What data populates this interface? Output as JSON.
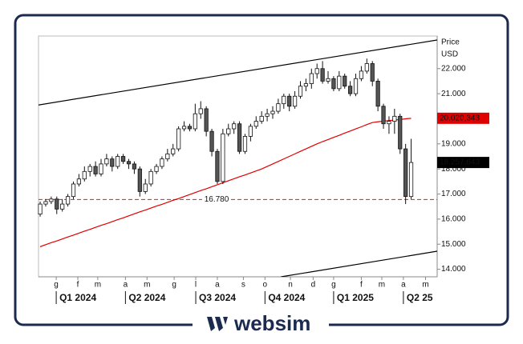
{
  "chart_data": {
    "type": "candlestick",
    "price_label": "Price",
    "currency_label": "USD",
    "brand": "websim",
    "xlim": [
      -0.3,
      71.7
    ],
    "xticks": [
      {
        "value": 2.9,
        "label": "g"
      },
      {
        "value": 6.8,
        "label": "f"
      },
      {
        "value": 10.4,
        "label": "m"
      },
      {
        "value": 15.4,
        "label": "a"
      },
      {
        "value": 19.3,
        "label": "m"
      },
      {
        "value": 24.2,
        "label": "g"
      },
      {
        "value": 28.1,
        "label": "l"
      },
      {
        "value": 32,
        "label": "a"
      },
      {
        "value": 36.7,
        "label": "s"
      },
      {
        "value": 40.6,
        "label": "o"
      },
      {
        "value": 45.2,
        "label": "n"
      },
      {
        "value": 49.3,
        "label": "d"
      },
      {
        "value": 53,
        "label": "g"
      },
      {
        "value": 58,
        "label": "f"
      },
      {
        "value": 61.7,
        "label": "m"
      },
      {
        "value": 65.6,
        "label": "a"
      },
      {
        "value": 69.6,
        "label": "m"
      }
    ],
    "quarters": [
      {
        "value": 2.9,
        "label": "Q1 2024"
      },
      {
        "value": 15.4,
        "label": "Q2 2024"
      },
      {
        "value": 28.1,
        "label": "Q3 2024"
      },
      {
        "value": 40.6,
        "label": "Q4 2024"
      },
      {
        "value": 53,
        "label": "Q1 2025"
      },
      {
        "value": 65.6,
        "label": "Q2 25"
      }
    ],
    "ylim": [
      13700,
      23300
    ],
    "yticks": [
      {
        "value": 14000,
        "label": "14.000"
      },
      {
        "value": 15000,
        "label": "15.000"
      },
      {
        "value": 16000,
        "label": "16.000"
      },
      {
        "value": 17000,
        "label": "17.000"
      },
      {
        "value": 18000,
        "label": "18.000"
      },
      {
        "value": 19000,
        "label": "19.000"
      },
      {
        "value": 20000,
        "label": "20.000"
      },
      {
        "value": 21000,
        "label": "21.000"
      },
      {
        "value": 22000,
        "label": "22.000"
      }
    ],
    "up_color": "#ffffff",
    "down_color": "#555555",
    "open": [
      16200,
      16600,
      16700,
      16800,
      16400,
      16600,
      16900,
      17400,
      17600,
      17900,
      18100,
      17800,
      18200,
      18400,
      18100,
      18500,
      18300,
      18200,
      18000,
      17100,
      17400,
      17900,
      18100,
      18400,
      18600,
      18800,
      19600,
      19700,
      19600,
      20200,
      20400,
      19500,
      18700,
      17500,
      19400,
      19600,
      19800,
      18700,
      19300,
      19700,
      19900,
      20100,
      20200,
      20300,
      20600,
      20900,
      20500,
      20900,
      21300,
      21400,
      21800,
      22000,
      21500,
      21600,
      21200,
      21700,
      21300,
      21000,
      21600,
      21900,
      22200,
      21500,
      20500,
      19800,
      19900,
      20100,
      18800,
      16900
    ],
    "high": [
      16700,
      16800,
      16900,
      16900,
      16800,
      17000,
      17500,
      17800,
      18100,
      18200,
      18300,
      18400,
      18600,
      18500,
      18600,
      18600,
      18400,
      18300,
      18100,
      17600,
      18000,
      18200,
      18500,
      18800,
      19000,
      19700,
      19900,
      19800,
      20600,
      20700,
      20500,
      19600,
      18800,
      19600,
      19800,
      19900,
      19900,
      19400,
      19800,
      20100,
      20300,
      20400,
      20500,
      20800,
      21000,
      21000,
      21100,
      21500,
      21600,
      22000,
      22200,
      22300,
      21900,
      21700,
      21900,
      21800,
      21500,
      21800,
      22100,
      22400,
      22300,
      21600,
      20600,
      20100,
      20400,
      20200,
      19000,
      19200
    ],
    "low": [
      16100,
      16500,
      16600,
      16200,
      16300,
      16500,
      16800,
      17300,
      17500,
      17700,
      17700,
      17700,
      18100,
      17900,
      18000,
      18200,
      18000,
      17800,
      16900,
      17000,
      17300,
      17800,
      18000,
      18300,
      18500,
      18700,
      19500,
      19500,
      19500,
      20000,
      19300,
      18500,
      17400,
      17400,
      19300,
      19400,
      18600,
      18600,
      19100,
      19600,
      19800,
      19900,
      20000,
      20200,
      20400,
      20300,
      20400,
      20800,
      21100,
      21200,
      21600,
      21400,
      21400,
      21100,
      21100,
      21200,
      20900,
      20900,
      21500,
      21800,
      21300,
      20300,
      19600,
      19400,
      19400,
      18600,
      16600,
      16800
    ],
    "close": [
      16600,
      16700,
      16800,
      16400,
      16600,
      16900,
      17400,
      17600,
      17900,
      18100,
      17800,
      18200,
      18400,
      18100,
      18500,
      18300,
      18200,
      18000,
      17100,
      17400,
      17900,
      18100,
      18400,
      18600,
      18800,
      19600,
      19700,
      19600,
      20200,
      20400,
      19500,
      18700,
      17500,
      19400,
      19600,
      19800,
      18700,
      19300,
      19700,
      19900,
      20100,
      20200,
      20300,
      20600,
      20900,
      20500,
      20900,
      21300,
      21400,
      21800,
      22000,
      21500,
      21600,
      21200,
      21700,
      21300,
      21000,
      21600,
      21900,
      22200,
      21500,
      20500,
      19800,
      19900,
      20100,
      18800,
      16900,
      18257.643
    ],
    "series": [
      {
        "color": "#e00000",
        "values": [
          14900,
          14980,
          15060,
          15130,
          15210,
          15290,
          15360,
          15440,
          15520,
          15590,
          15670,
          15750,
          15820,
          15900,
          15980,
          16050,
          16130,
          16210,
          16290,
          16360,
          16440,
          16520,
          16590,
          16670,
          16750,
          16820,
          16900,
          16980,
          17060,
          17140,
          17210,
          17290,
          17370,
          17450,
          17530,
          17610,
          17690,
          17760,
          17840,
          17920,
          18000,
          18100,
          18200,
          18300,
          18400,
          18500,
          18600,
          18700,
          18800,
          18900,
          19000,
          19090,
          19170,
          19260,
          19340,
          19430,
          19510,
          19600,
          19680,
          19770,
          19850,
          19880,
          19910,
          19930,
          19950,
          19970,
          20000,
          20020
        ]
      }
    ],
    "trendlines": [
      {
        "x": [
          -0.3,
          71.7
        ],
        "values": [
          20550,
          23140
        ],
        "color": "#000000"
      },
      {
        "x": [
          43.5,
          71.7
        ],
        "values": [
          13700,
          14720
        ],
        "color": "#000000"
      }
    ],
    "level": {
      "value": 16780,
      "label": "16.780",
      "color": "#d42020"
    },
    "price_tags": [
      {
        "value": 20020.343,
        "label": "20.020,343",
        "color": "#e00000"
      },
      {
        "value": 18257.643,
        "label": "18.257,643",
        "color": "#000000"
      }
    ]
  }
}
